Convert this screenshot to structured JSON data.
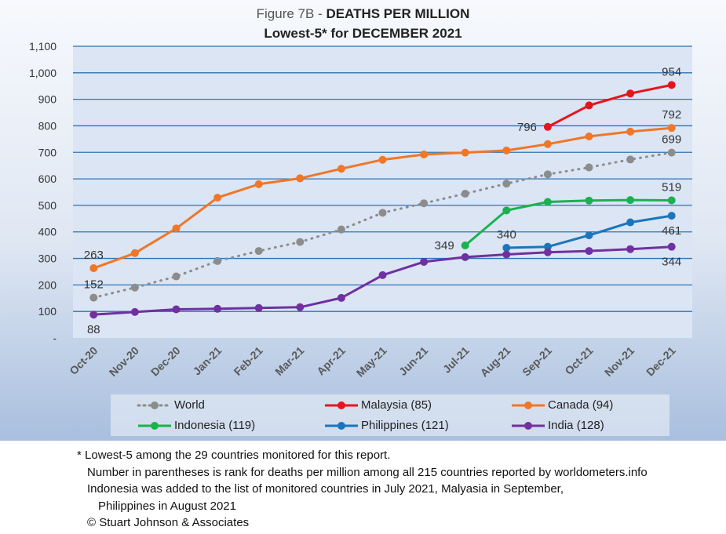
{
  "title": {
    "prefix": "Figure 7B - ",
    "main": "DEATHS PER MILLION",
    "subtitle": "Lowest-5* for DECEMBER 2021"
  },
  "chart_data": {
    "type": "line",
    "title": "Figure 7B - DEATHS PER MILLION",
    "subtitle": "Lowest-5* for DECEMBER 2021",
    "categories": [
      "Oct-20",
      "Nov-20",
      "Dec-20",
      "Jan-21",
      "Feb-21",
      "Mar-21",
      "Apr-21",
      "May-21",
      "Jun-21",
      "Jul-21",
      "Aug-21",
      "Sep-21",
      "Oct-21",
      "Nov-21",
      "Dec-21"
    ],
    "ylim": [
      0,
      1100
    ],
    "y_ticks": [
      "-",
      "100",
      "200",
      "300",
      "400",
      "500",
      "600",
      "700",
      "800",
      "900",
      "1,000",
      "1,100"
    ],
    "grid": true,
    "legend_position": "bottom",
    "series": [
      {
        "name": "World",
        "color": "#8c8c8c",
        "dashed": true,
        "values": [
          152,
          190,
          232,
          290,
          328,
          362,
          409,
          472,
          508,
          544,
          582,
          617,
          643,
          673,
          699
        ]
      },
      {
        "name": "Malaysia (85)",
        "color": "#e8141c",
        "dashed": false,
        "values": [
          null,
          null,
          null,
          null,
          null,
          null,
          null,
          null,
          null,
          null,
          null,
          796,
          877,
          922,
          954
        ]
      },
      {
        "name": "Canada (94)",
        "color": "#f07628",
        "dashed": false,
        "values": [
          263,
          320,
          413,
          529,
          580,
          602,
          638,
          672,
          692,
          699,
          707,
          731,
          760,
          778,
          792
        ]
      },
      {
        "name": "Indonesia (119)",
        "color": "#1ab24c",
        "dashed": false,
        "values": [
          null,
          null,
          null,
          null,
          null,
          null,
          null,
          null,
          null,
          349,
          481,
          513,
          518,
          520,
          519
        ]
      },
      {
        "name": "Philippines (121)",
        "color": "#1b75bc",
        "dashed": false,
        "values": [
          null,
          null,
          null,
          null,
          null,
          null,
          null,
          null,
          null,
          null,
          340,
          344,
          387,
          436,
          461
        ]
      },
      {
        "name": "India (128)",
        "color": "#7030a0",
        "dashed": false,
        "values": [
          88,
          98,
          108,
          110,
          113,
          116,
          151,
          237,
          287,
          305,
          315,
          323,
          328,
          335,
          344
        ]
      }
    ],
    "data_labels": [
      {
        "series": 2,
        "index": 0,
        "text": "263",
        "pos": "above"
      },
      {
        "series": 0,
        "index": 0,
        "text": "152",
        "pos": "above"
      },
      {
        "series": 5,
        "index": 0,
        "text": "88",
        "pos": "below"
      },
      {
        "series": 3,
        "index": 9,
        "text": "349",
        "pos": "left"
      },
      {
        "series": 4,
        "index": 10,
        "text": "340",
        "pos": "above"
      },
      {
        "series": 1,
        "index": 11,
        "text": "796",
        "pos": "left"
      },
      {
        "series": 1,
        "index": 14,
        "text": "954",
        "pos": "above"
      },
      {
        "series": 2,
        "index": 14,
        "text": "792",
        "pos": "above"
      },
      {
        "series": 0,
        "index": 14,
        "text": "699",
        "pos": "above"
      },
      {
        "series": 3,
        "index": 14,
        "text": "519",
        "pos": "above"
      },
      {
        "series": 4,
        "index": 14,
        "text": "461",
        "pos": "below"
      },
      {
        "series": 5,
        "index": 14,
        "text": "344",
        "pos": "below"
      }
    ]
  },
  "legend": [
    {
      "label": "World",
      "color": "#8c8c8c",
      "dashed": true
    },
    {
      "label": "Malaysia (85)",
      "color": "#e8141c",
      "dashed": false
    },
    {
      "label": "Canada (94)",
      "color": "#f07628",
      "dashed": false
    },
    {
      "label": "Indonesia (119)",
      "color": "#1ab24c",
      "dashed": false
    },
    {
      "label": "Philippines (121)",
      "color": "#1b75bc",
      "dashed": false
    },
    {
      "label": "India (128)",
      "color": "#7030a0",
      "dashed": false
    }
  ],
  "notes": [
    "* Lowest-5 among the 29 countries monitored for this report.",
    "Number in parentheses is rank for deaths per million among all 215 countries reported by worldometers.info",
    "Indonesia was added to the list of monitored countries in July 2021, Malyasia in September,",
    "Philippines in August 2021",
    "© Stuart Johnson & Associates"
  ]
}
